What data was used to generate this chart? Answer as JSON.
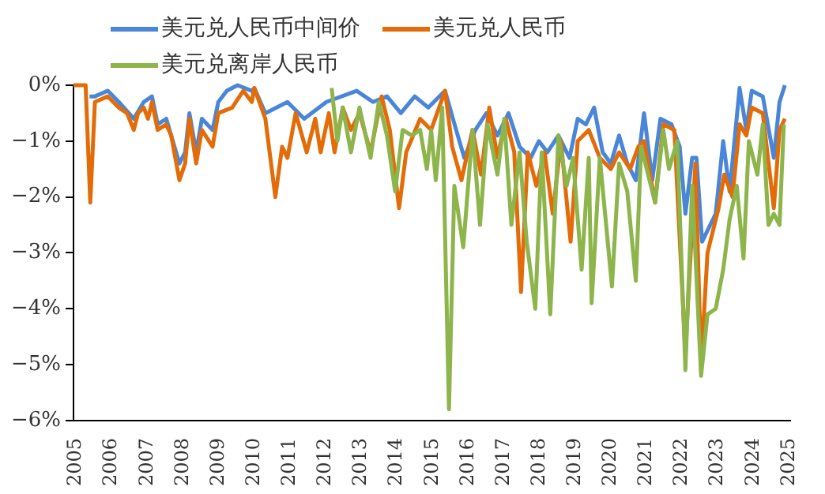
{
  "chart_data": {
    "type": "line",
    "legend": "top",
    "grid": false,
    "marker": "none",
    "line_style": "solid",
    "xlim": [
      2005,
      2025.1
    ],
    "xticks": [
      2005,
      2006,
      2007,
      2008,
      2009,
      2010,
      2011,
      2012,
      2013,
      2014,
      2015,
      2016,
      2017,
      2018,
      2019,
      2020,
      2021,
      2022,
      2023,
      2024,
      2025
    ],
    "ylim": [
      -6,
      0
    ],
    "yticks": [
      {
        "value": 0,
        "label": "0%"
      },
      {
        "value": -1,
        "label": "−1%"
      },
      {
        "value": -2,
        "label": "−2%"
      },
      {
        "value": -3,
        "label": "−3%"
      },
      {
        "value": -4,
        "label": "−4%"
      },
      {
        "value": -5,
        "label": "−5%"
      },
      {
        "value": -6,
        "label": "−6%"
      }
    ],
    "series": [
      {
        "name": "美元兑人民币中间价",
        "color": "#4a86d8",
        "x": [
          2005.45,
          2005.6,
          2005.96,
          2006.27,
          2006.69,
          2006.97,
          2007.2,
          2007.36,
          2007.6,
          2007.97,
          2008.13,
          2008.25,
          2008.44,
          2008.6,
          2008.9,
          2009.06,
          2009.3,
          2009.6,
          2010.0,
          2010.07,
          2010.38,
          2011.0,
          2011.47,
          2012.09,
          2012.94,
          2013.4,
          2013.79,
          2014.18,
          2014.57,
          2014.95,
          2015.42,
          2015.73,
          2015.96,
          2016.27,
          2016.58,
          2016.89,
          2017.2,
          2017.51,
          2017.82,
          2018.05,
          2018.29,
          2018.6,
          2018.91,
          2019.14,
          2019.37,
          2019.6,
          2019.84,
          2020.07,
          2020.3,
          2020.53,
          2020.77,
          2021.0,
          2021.23,
          2021.46,
          2021.77,
          2022.0,
          2022.16,
          2022.35,
          2022.47,
          2022.63,
          2022.78,
          2023.01,
          2023.22,
          2023.4,
          2023.68,
          2023.87,
          2024.02,
          2024.33,
          2024.64,
          2024.8,
          2024.95
        ],
        "values": [
          -0.2,
          -0.2,
          -0.1,
          -0.3,
          -0.6,
          -0.3,
          -0.2,
          -0.7,
          -0.6,
          -1.4,
          -1.2,
          -0.5,
          -1.2,
          -0.6,
          -0.8,
          -0.3,
          -0.1,
          0,
          -0.1,
          -0.05,
          -0.5,
          -0.3,
          -0.6,
          -0.3,
          -0.1,
          -0.3,
          -0.2,
          -0.5,
          -0.2,
          -0.4,
          -0.1,
          -0.8,
          -1.3,
          -0.8,
          -0.5,
          -0.9,
          -0.5,
          -1.1,
          -1.3,
          -1.0,
          -1.2,
          -0.9,
          -1.3,
          -0.6,
          -0.7,
          -0.4,
          -1.2,
          -1.4,
          -0.9,
          -1.4,
          -1.7,
          -0.5,
          -1.7,
          -0.6,
          -0.7,
          -1.1,
          -2.3,
          -1.3,
          -1.3,
          -2.8,
          -2.6,
          -2.3,
          -1.0,
          -1.9,
          -0.05,
          -0.8,
          -0.1,
          -0.2,
          -1.3,
          -0.3,
          0
        ]
      },
      {
        "name": "美元兑人民币",
        "color": "#e36c09",
        "x": [
          2005,
          2005.34,
          2005.47,
          2005.6,
          2005.96,
          2006.27,
          2006.5,
          2006.69,
          2006.81,
          2006.97,
          2007.09,
          2007.2,
          2007.36,
          2007.6,
          2007.74,
          2007.97,
          2008.13,
          2008.25,
          2008.44,
          2008.6,
          2008.9,
          2009.06,
          2009.45,
          2009.76,
          2010.0,
          2010.07,
          2010.38,
          2010.66,
          2010.85,
          2011.0,
          2011.23,
          2011.54,
          2011.78,
          2011.93,
          2012.16,
          2012.32,
          2012.55,
          2012.78,
          2013.02,
          2013.33,
          2013.64,
          2013.87,
          2014.13,
          2014.33,
          2014.72,
          2015.03,
          2015.42,
          2015.62,
          2015.88,
          2016.19,
          2016.43,
          2016.66,
          2016.89,
          2017.12,
          2017.36,
          2017.55,
          2017.74,
          2017.98,
          2018.21,
          2018.44,
          2018.67,
          2018.94,
          2019.14,
          2019.45,
          2019.76,
          2020.07,
          2020.3,
          2020.61,
          2020.84,
          2021.0,
          2021.31,
          2021.54,
          2021.85,
          2022.16,
          2022.44,
          2022.6,
          2022.78,
          2023.09,
          2023.25,
          2023.48,
          2023.68,
          2023.87,
          2024.02,
          2024.33,
          2024.64,
          2024.8,
          2024.95
        ],
        "values": [
          0,
          0,
          -2.1,
          -0.3,
          -0.2,
          -0.4,
          -0.5,
          -0.8,
          -0.5,
          -0.4,
          -0.6,
          -0.3,
          -0.8,
          -0.7,
          -0.9,
          -1.7,
          -1.4,
          -0.6,
          -1.4,
          -0.8,
          -1.1,
          -0.5,
          -0.4,
          -0.1,
          -0.3,
          -0.05,
          -0.6,
          -2.0,
          -1.1,
          -1.3,
          -0.5,
          -1.2,
          -0.6,
          -1.2,
          -0.5,
          -1.2,
          -0.4,
          -0.8,
          -0.5,
          -1.2,
          -0.2,
          -0.8,
          -2.2,
          -1.2,
          -0.6,
          -0.8,
          -0.1,
          -1.1,
          -1.7,
          -0.8,
          -1.6,
          -0.4,
          -1.3,
          -0.6,
          -1.2,
          -3.7,
          -1.2,
          -1.8,
          -1.2,
          -2.3,
          -1.0,
          -2.8,
          -1.0,
          -0.8,
          -1.3,
          -1.5,
          -1.2,
          -1.5,
          -1.1,
          -1.0,
          -2.1,
          -0.7,
          -0.8,
          -4.8,
          -1.4,
          -5.0,
          -3.0,
          -2.2,
          -1.6,
          -2.0,
          -0.7,
          -0.9,
          -0.4,
          -0.5,
          -2.2,
          -0.8,
          -0.6
        ]
      },
      {
        "name": "美元兑离岸人民币",
        "color": "#8db54b",
        "x": [
          2012.24,
          2012.4,
          2012.55,
          2012.78,
          2013.02,
          2013.33,
          2013.56,
          2013.79,
          2014.02,
          2014.23,
          2014.49,
          2014.72,
          2014.91,
          2015.03,
          2015.16,
          2015.34,
          2015.53,
          2015.68,
          2015.93,
          2016.19,
          2016.4,
          2016.61,
          2016.89,
          2017.08,
          2017.28,
          2017.51,
          2017.71,
          2017.95,
          2018.13,
          2018.37,
          2018.6,
          2018.83,
          2019.01,
          2019.25,
          2019.45,
          2019.53,
          2019.76,
          2020.1,
          2020.3,
          2020.53,
          2020.77,
          2020.92,
          2021.31,
          2021.54,
          2021.7,
          2021.93,
          2022.16,
          2022.35,
          2022.6,
          2022.78,
          2023.01,
          2023.22,
          2023.4,
          2023.6,
          2023.79,
          2023.94,
          2024.18,
          2024.33,
          2024.49,
          2024.64,
          2024.8,
          2024.92
        ],
        "values": [
          -0.05,
          -1.0,
          -0.4,
          -1.2,
          -0.4,
          -1.3,
          -0.3,
          -0.9,
          -1.9,
          -0.8,
          -0.9,
          -0.8,
          -1.5,
          -0.8,
          -1.7,
          -0.4,
          -5.8,
          -1.8,
          -2.9,
          -0.8,
          -2.5,
          -0.7,
          -1.6,
          -0.6,
          -2.5,
          -1.2,
          -2.8,
          -4.0,
          -1.2,
          -4.1,
          -0.9,
          -1.8,
          -1.3,
          -3.3,
          -1.3,
          -3.9,
          -1.3,
          -3.6,
          -1.4,
          -1.9,
          -3.5,
          -1.1,
          -2.1,
          -0.8,
          -1.5,
          -1.0,
          -5.1,
          -1.8,
          -5.2,
          -4.1,
          -4.0,
          -3.3,
          -2.4,
          -1.8,
          -3.1,
          -1.0,
          -1.6,
          -0.7,
          -2.5,
          -2.3,
          -2.5,
          -0.7
        ]
      }
    ]
  }
}
